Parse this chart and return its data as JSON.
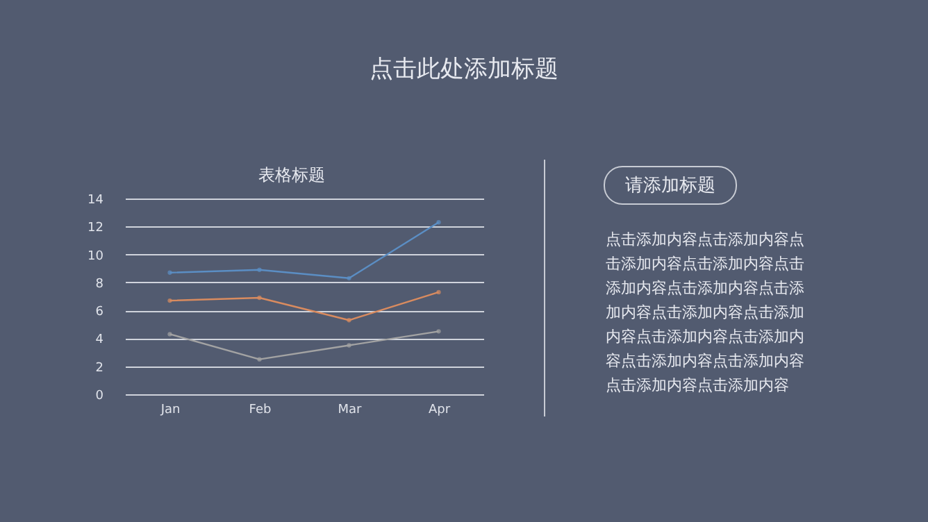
{
  "chart_data": {
    "type": "line",
    "title": "点击此处添加标题",
    "subtitle": "表格标题",
    "categories": [
      "Jan",
      "Feb",
      "Mar",
      "Apr"
    ],
    "series": [
      {
        "color": "#5b8ec4",
        "values": [
          8.7,
          8.9,
          8.3,
          12.3
        ]
      },
      {
        "color": "#d98b5f",
        "values": [
          6.7,
          6.9,
          5.3,
          7.3
        ]
      },
      {
        "color": "#a3a3a3",
        "values": [
          4.3,
          2.5,
          3.5,
          4.5
        ]
      }
    ],
    "ylim": [
      0,
      14
    ],
    "yticks": [
      0,
      2,
      4,
      6,
      8,
      10,
      12,
      14
    ],
    "grid": "y",
    "marker": "circle",
    "line_style": "solid",
    "annotations": [
      "请添加标题",
      "点击添加内容点击添加内容点击添加内容点击添加内容点击添加内容点击添加内容点击添加内容点击添加内容点击添加内容点击添加内容点击添加内容点击添加内容点击添加内容点击添加内容点击添加内容"
    ]
  }
}
